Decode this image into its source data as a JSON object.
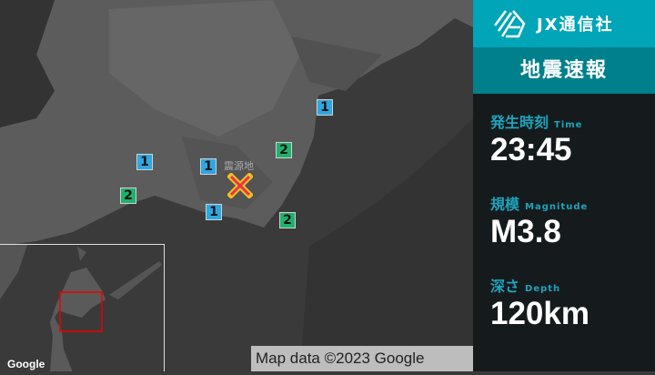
{
  "map": {
    "epicenter_label": "震源地",
    "attribution": "Map data ©2023 Google",
    "inset_logo": "Google",
    "intensity_markers": [
      {
        "value": "1",
        "color": "#2ea7e0"
      },
      {
        "value": "1",
        "color": "#2ea7e0"
      },
      {
        "value": "1",
        "color": "#2ea7e0"
      },
      {
        "value": "1",
        "color": "#2ea7e0"
      },
      {
        "value": "2",
        "color": "#1db36b"
      },
      {
        "value": "2",
        "color": "#1db36b"
      },
      {
        "value": "2",
        "color": "#1db36b"
      }
    ]
  },
  "sidebar": {
    "brand": "JX通信社",
    "title": "地震速報",
    "items": [
      {
        "label": "発生時刻",
        "sub": "Time",
        "value": "23:45"
      },
      {
        "label": "規模",
        "sub": "Magnitude",
        "value": "M3.8"
      },
      {
        "label": "深さ",
        "sub": "Depth",
        "value": "120km"
      }
    ]
  },
  "colors": {
    "brand": "#00a5b8",
    "title_bg": "#00808c",
    "label": "#1fa3bd",
    "epicenter": "#e8334a"
  }
}
